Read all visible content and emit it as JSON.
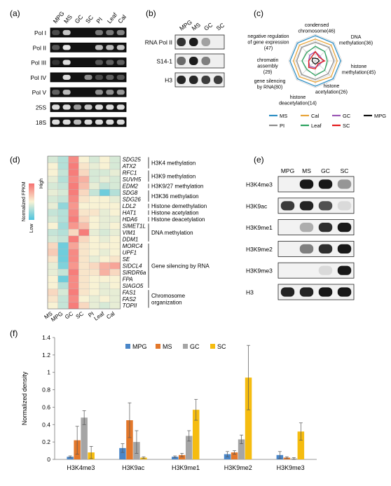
{
  "panel_labels": [
    "(a)",
    "(b)",
    "(c)",
    "(d)",
    "(e)",
    "(f)"
  ],
  "panel_a": {
    "columns": [
      "MPG",
      "MS",
      "GC",
      "SC",
      "PI",
      "Leaf",
      "Cal"
    ],
    "rows": [
      "Pol I",
      "Pol II",
      "Pol III",
      "Pol IV",
      "Pol V",
      "25S",
      "18S"
    ],
    "intensity": [
      [
        0.25,
        0.8,
        0,
        0,
        0.45,
        0.45,
        0.5
      ],
      [
        0.3,
        0.95,
        0,
        0,
        0.75,
        0.75,
        0.8
      ],
      [
        0.15,
        0.9,
        0,
        0,
        0.3,
        0.35,
        0.35
      ],
      [
        0,
        0.9,
        0,
        0.55,
        0.25,
        0.35,
        0.3
      ],
      [
        0.35,
        0.75,
        0,
        0,
        0.55,
        0.55,
        0.6
      ],
      [
        0.9,
        0.9,
        0.6,
        0.8,
        0.9,
        0.9,
        0.9
      ],
      [
        0.9,
        0.9,
        0.75,
        0.9,
        0.9,
        0.9,
        0.9
      ]
    ]
  },
  "panel_b": {
    "columns": [
      "MPG",
      "MS",
      "GC",
      "SC"
    ],
    "rows": [
      "RNA Pol II",
      "S14-1",
      "H3"
    ],
    "intensity": [
      [
        0.85,
        0.95,
        0.35,
        0
      ],
      [
        0.6,
        0.95,
        0.5,
        0
      ],
      [
        0.9,
        0.9,
        0.8,
        0.8
      ]
    ]
  },
  "panel_c": {
    "axes": [
      {
        "label": [
          "condensed",
          "chromosome(46)"
        ]
      },
      {
        "label": [
          "DNA",
          "methylation(36)"
        ]
      },
      {
        "label": [
          "histone",
          "methylation(45)"
        ]
      },
      {
        "label": [
          "histone",
          "acetylation(26)"
        ]
      },
      {
        "label": [
          "histone",
          "deacetylation(14)"
        ]
      },
      {
        "label": [
          "gene silencing",
          "by RNA(80)"
        ]
      },
      {
        "label": [
          "chromatin",
          "assembly",
          "(29)"
        ]
      },
      {
        "label": [
          "negative regulation",
          "of gene expression",
          "(47)"
        ]
      }
    ],
    "series": [
      {
        "name": "MS",
        "color": "#2f8fc4",
        "values": [
          0.95,
          0.95,
          0.95,
          0.95,
          0.95,
          0.95,
          0.95,
          0.95
        ]
      },
      {
        "name": "Cal",
        "color": "#e8a53b",
        "values": [
          0.82,
          0.84,
          0.82,
          0.84,
          0.8,
          0.84,
          0.82,
          0.84
        ]
      },
      {
        "name": "GC",
        "color": "#9b59b6",
        "values": [
          0.35,
          0.25,
          0.3,
          0.2,
          0.25,
          0.3,
          0.25,
          0.3
        ]
      },
      {
        "name": "MPG",
        "color": "#111111",
        "values": [
          0.1,
          0.12,
          0.15,
          0.1,
          0.12,
          0.1,
          0.12,
          0.15
        ]
      },
      {
        "name": "PI",
        "color": "#8c8c8c",
        "values": [
          0.7,
          0.72,
          0.7,
          0.68,
          0.7,
          0.72,
          0.7,
          0.72
        ]
      },
      {
        "name": "Leaf",
        "color": "#2ca25f",
        "values": [
          0.55,
          0.5,
          0.45,
          0.5,
          0.55,
          0.45,
          0.5,
          0.45
        ]
      },
      {
        "name": "SC",
        "color": "#e31a1c",
        "values": [
          0.35,
          0.2,
          0.35,
          0.15,
          0.3,
          0.35,
          0.25,
          0.2
        ]
      }
    ]
  },
  "panel_d": {
    "columns": [
      "MS",
      "MPG",
      "GC",
      "SC",
      "PI",
      "Leaf",
      "Cal"
    ],
    "legend_title": "Normalized FPKM",
    "legend_high": "High",
    "legend_low": "Low",
    "genes": [
      "SDG25",
      "ATX2",
      "RFC1",
      "SUVH5",
      "EDM2",
      "SDG8",
      "SDG26",
      "LDL2",
      "HAT1",
      "HDA6",
      "SIMET1L",
      "VIM1",
      "DDM1",
      "MORC4",
      "UPF1",
      "SE",
      "SIDCL4",
      "SIRDR6a",
      "FPA",
      "SIAGO5",
      "FAS1",
      "FAS2",
      "TOPII"
    ],
    "values": [
      [
        0.4,
        0.3,
        0.9,
        0.5,
        0.4,
        0.5,
        0.4
      ],
      [
        0.5,
        0.3,
        0.95,
        0.55,
        0.45,
        0.5,
        0.4
      ],
      [
        0.5,
        0.35,
        0.95,
        0.6,
        0.4,
        0.4,
        0.45
      ],
      [
        0.45,
        0.3,
        0.9,
        0.75,
        0.4,
        0.45,
        0.4
      ],
      [
        0.4,
        0.35,
        0.95,
        0.7,
        0.45,
        0.35,
        0.4
      ],
      [
        0.45,
        0.4,
        0.95,
        0.6,
        0.35,
        0.1,
        0.3
      ],
      [
        0.4,
        0.35,
        0.9,
        0.55,
        0.5,
        0.5,
        0.45
      ],
      [
        0.45,
        0.2,
        0.85,
        0.5,
        0.5,
        0.5,
        0.5
      ],
      [
        0.35,
        0.3,
        0.9,
        0.55,
        0.55,
        0.45,
        0.5
      ],
      [
        0.4,
        0.3,
        0.95,
        0.6,
        0.5,
        0.45,
        0.45
      ],
      [
        0.5,
        0.25,
        0.85,
        0.7,
        0.5,
        0.45,
        0.5
      ],
      [
        0.35,
        0.3,
        0.6,
        0.95,
        0.45,
        0.4,
        0.45
      ],
      [
        0.4,
        0.35,
        0.95,
        0.6,
        0.5,
        0.45,
        0.5
      ],
      [
        0.6,
        0.1,
        0.8,
        0.55,
        0.5,
        0.5,
        0.5
      ],
      [
        0.65,
        0.1,
        0.9,
        0.55,
        0.5,
        0.45,
        0.5
      ],
      [
        0.55,
        0.1,
        0.9,
        0.55,
        0.45,
        0.5,
        0.55
      ],
      [
        0.45,
        0.15,
        0.85,
        0.55,
        0.6,
        0.75,
        0.8
      ],
      [
        0.45,
        0.35,
        0.95,
        0.55,
        0.55,
        0.75,
        0.6
      ],
      [
        0.5,
        0.1,
        0.9,
        0.55,
        0.5,
        0.5,
        0.5
      ],
      [
        0.5,
        0.3,
        0.9,
        0.55,
        0.5,
        0.45,
        0.5
      ],
      [
        0.6,
        0.4,
        0.95,
        0.55,
        0.5,
        0.45,
        0.45
      ],
      [
        0.55,
        0.35,
        0.9,
        0.5,
        0.45,
        0.5,
        0.45
      ],
      [
        0.5,
        0.35,
        0.95,
        0.6,
        0.45,
        0.4,
        0.45
      ]
    ],
    "groups": [
      {
        "label": [
          "H3K4 methylation"
        ],
        "from": 0,
        "to": 1
      },
      {
        "label": [
          "H3K9 methylation"
        ],
        "from": 2,
        "to": 3
      },
      {
        "label": [
          "H3K9/27 methylation"
        ],
        "from": 4,
        "to": 4
      },
      {
        "label": [
          "H3K36 methylation"
        ],
        "from": 5,
        "to": 6
      },
      {
        "label": [
          "Histone demethylation"
        ],
        "from": 7,
        "to": 7
      },
      {
        "label": [
          "Histone acetylation"
        ],
        "from": 8,
        "to": 8
      },
      {
        "label": [
          "Histone deacetylation"
        ],
        "from": 9,
        "to": 9
      },
      {
        "label": [
          "DNA methylation"
        ],
        "from": 10,
        "to": 12
      },
      {
        "label": [
          "Gene silencing by RNA"
        ],
        "from": 13,
        "to": 19
      },
      {
        "label": [
          "Chromosome",
          "organization"
        ],
        "from": 20,
        "to": 22
      }
    ]
  },
  "panel_e": {
    "columns": [
      "MPG",
      "MS",
      "GC",
      "SC"
    ],
    "rows": [
      "H3K4me3",
      "H3K9ac",
      "H3K9me1",
      "H3K9me2",
      "H3K9me3",
      "H3"
    ],
    "intensity": [
      [
        0,
        0.95,
        0.95,
        0.4
      ],
      [
        0.8,
        0.9,
        0.7,
        0.1
      ],
      [
        0,
        0.3,
        0.85,
        0.95
      ],
      [
        0,
        0.5,
        0.85,
        0.95
      ],
      [
        0,
        0,
        0.1,
        0.95
      ],
      [
        0.9,
        0.9,
        0.95,
        0.95
      ]
    ]
  },
  "chart_data": {
    "type": "bar",
    "ylabel": "Normalized density",
    "ylim": [
      0,
      1.4
    ],
    "yticks": [
      "0",
      "0.2",
      "0.4",
      "0.6",
      "0.8",
      "1",
      "1.2",
      "1.4"
    ],
    "categories": [
      "H3K4me3",
      "H3K9ac",
      "H3K9me1",
      "H3K9me2",
      "H3K9me3"
    ],
    "legend": "top",
    "series": [
      {
        "name": "MPG",
        "color": "#4a86c8",
        "values": [
          0.03,
          0.13,
          0.03,
          0.06,
          0.05
        ],
        "errors": [
          0.01,
          0.05,
          0.01,
          0.03,
          0.04
        ]
      },
      {
        "name": "MS",
        "color": "#e3782b",
        "values": [
          0.22,
          0.45,
          0.05,
          0.08,
          0.02
        ],
        "errors": [
          0.16,
          0.2,
          0.02,
          0.02,
          0.01
        ]
      },
      {
        "name": "GC",
        "color": "#a5a5a5",
        "values": [
          0.48,
          0.2,
          0.27,
          0.23,
          0.01
        ],
        "errors": [
          0.08,
          0.13,
          0.06,
          0.05,
          0.01
        ]
      },
      {
        "name": "SC",
        "color": "#f5bc10",
        "values": [
          0.08,
          0.02,
          0.57,
          0.94,
          0.32
        ],
        "errors": [
          0.07,
          0.01,
          0.12,
          0.37,
          0.1
        ]
      }
    ]
  }
}
